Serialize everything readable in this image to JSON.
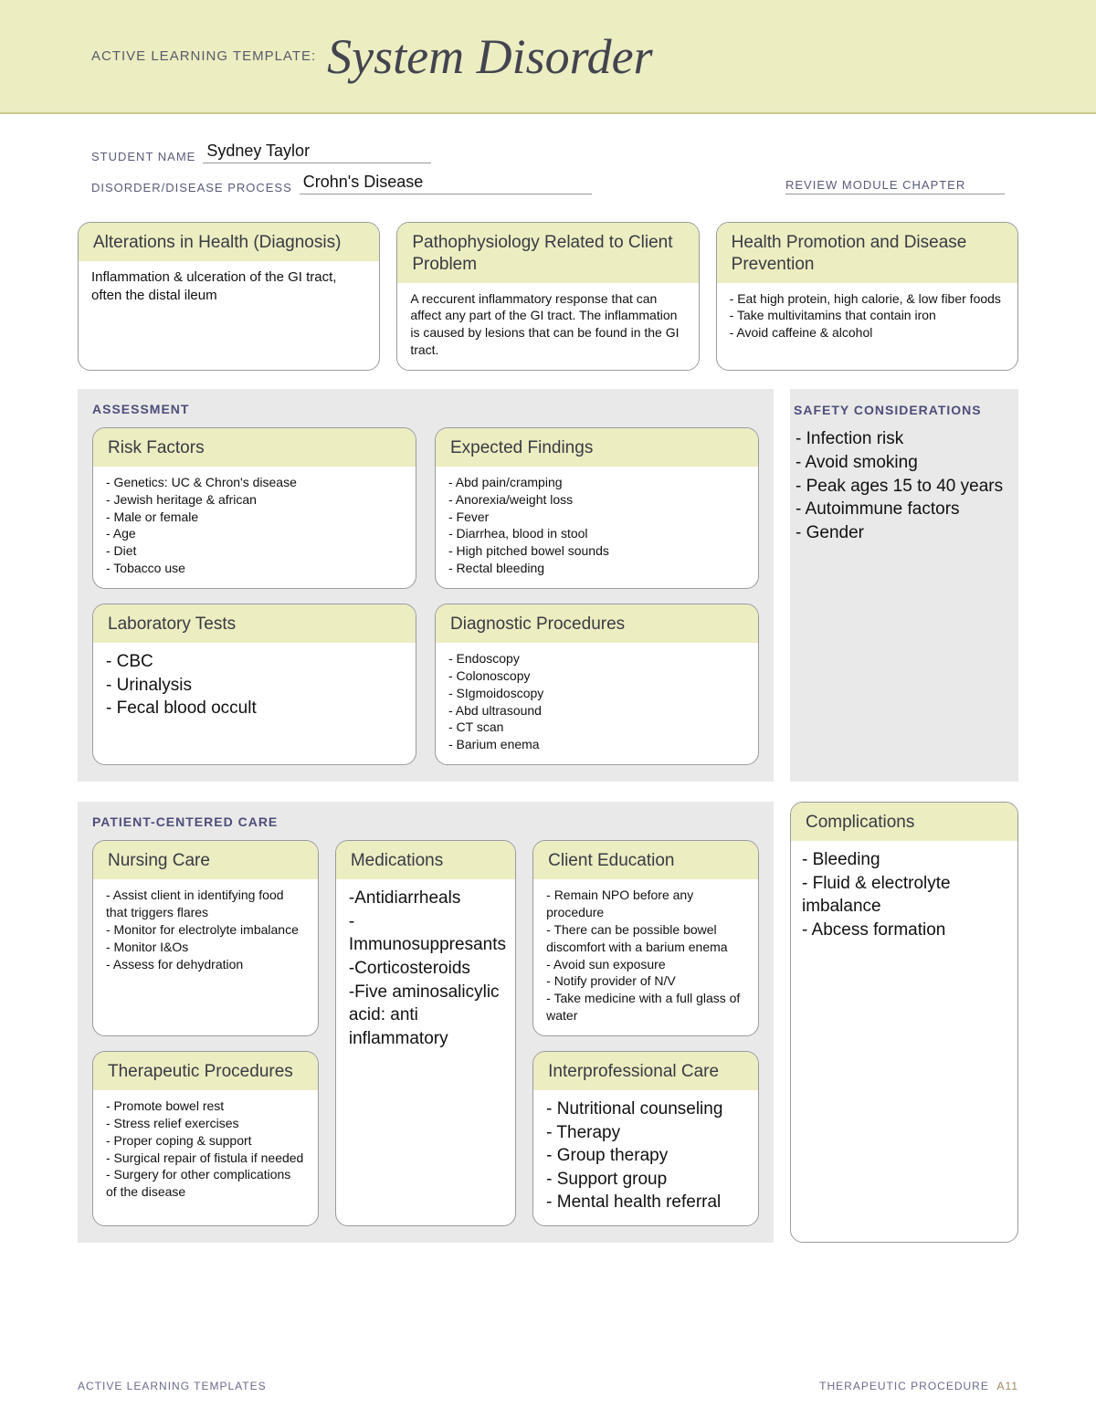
{
  "banner": {
    "label": "ACTIVE LEARNING TEMPLATE:",
    "title": "System Disorder"
  },
  "meta": {
    "student_label": "STUDENT NAME",
    "student_value": "Sydney Taylor",
    "disease_label": "DISORDER/DISEASE PROCESS",
    "disease_value": "Crohn's Disease",
    "review_label": "REVIEW MODULE CHAPTER"
  },
  "top": {
    "alterations": {
      "title": "Alterations in Health (Diagnosis)",
      "body": "Inflammation & ulceration of the GI tract, often the distal ileum"
    },
    "patho": {
      "title": "Pathophysiology Related to Client Problem",
      "body": "A reccurent inflammatory response that can affect any part of the GI tract. The inflammation is caused by lesions that can be found in the GI tract."
    },
    "promo": {
      "title": "Health Promotion and Disease Prevention",
      "body": "- Eat high protein, high calorie, & low fiber foods\n- Take multivitamins that contain iron\n- Avoid caffeine & alcohol"
    }
  },
  "assessment": {
    "title": "ASSESSMENT",
    "risk": {
      "title": "Risk Factors",
      "body": "- Genetics: UC & Chron's disease\n- Jewish heritage & african\n- Male or female\n- Age\n- Diet\n- Tobacco use"
    },
    "findings": {
      "title": "Expected Findings",
      "body": "- Abd pain/cramping\n- Anorexia/weight loss\n- Fever\n- Diarrhea, blood in stool\n- High pitched bowel sounds\n- Rectal bleeding"
    },
    "labs": {
      "title": "Laboratory Tests",
      "body": "- CBC\n- Urinalysis\n- Fecal blood occult"
    },
    "diag": {
      "title": "Diagnostic Procedures",
      "body": "- Endoscopy\n- Colonoscopy\n- SIgmoidoscopy\n- Abd ultrasound\n- CT scan\n- Barium enema"
    }
  },
  "safety": {
    "title": "SAFETY CONSIDERATIONS",
    "body": "- Infection risk\n- Avoid smoking\n- Peak ages 15 to 40 years\n- Autoimmune factors\n- Gender"
  },
  "pcc": {
    "title": "PATIENT-CENTERED CARE",
    "nursing": {
      "title": "Nursing Care",
      "body": "- Assist client in identifying food that triggers flares\n- Monitor for electrolyte imbalance\n- Monitor I&Os\n- Assess for dehydration"
    },
    "meds": {
      "title": "Medications",
      "body": "-Antidiarrheals\n-Immunosuppresants\n-Corticosteroids\n-Five aminosalicylic acid: anti inflammatory"
    },
    "edu": {
      "title": "Client Education",
      "body": "- Remain NPO before any procedure\n- There can be possible bowel discomfort with a barium enema\n- Avoid sun exposure\n- Notify provider of N/V\n- Take medicine with a full glass of water"
    },
    "thera": {
      "title": "Therapeutic Procedures",
      "body": "- Promote bowel rest\n- Stress relief exercises\n- Proper coping & support\n- Surgical repair of fistula if needed\n- Surgery for other complications of the disease"
    },
    "inter": {
      "title": "Interprofessional Care",
      "body": "- Nutritional counseling\n- Therapy\n- Group therapy\n- Support group\n- Mental health referral"
    }
  },
  "complications": {
    "title": "Complications",
    "body": "- Bleeding\n- Fluid & electrolyte imbalance\n- Abcess formation"
  },
  "footer": {
    "left": "ACTIVE LEARNING TEMPLATES",
    "right_label": "THERAPEUTIC PROCEDURE",
    "right_page": "A11"
  }
}
